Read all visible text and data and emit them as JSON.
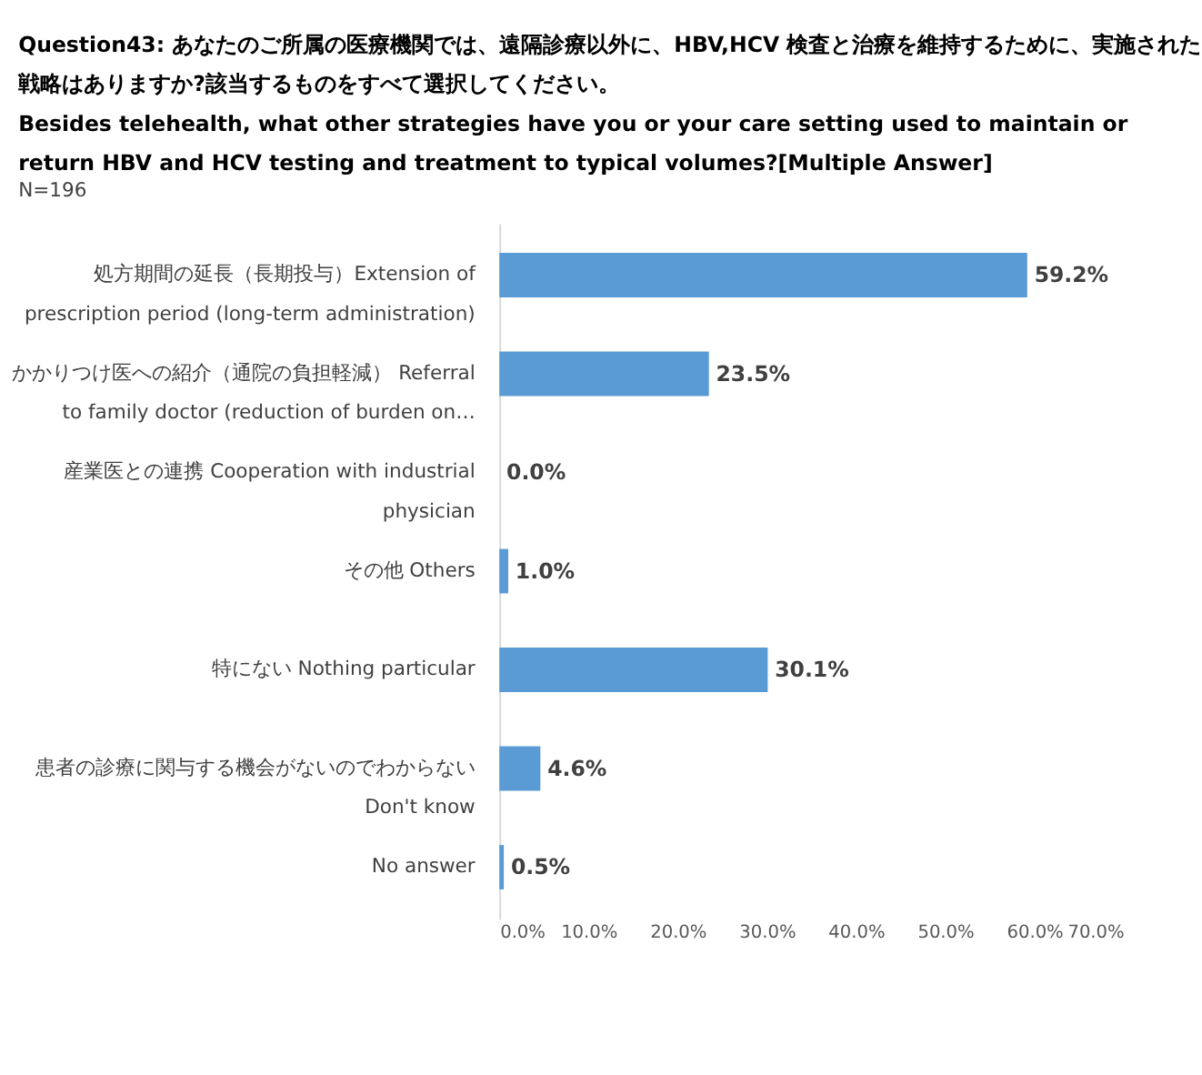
{
  "chart_data": {
    "type": "bar",
    "orientation": "horizontal",
    "title": "Question43: あなたのご所属の医療機関では、遠隔診療以外に、HBV,HCV 検査と治療を維持するために、実施された戦略はありますか?該当するものをすべて選択してください。\nBesides telehealth, what other strategies have you or your care setting  used to maintain or return HBV and HCV testing and treatment to typical volumes?[Multiple Answer]",
    "annotations": [
      "N=196"
    ],
    "categories": [
      "処方期間の延長（長期投与）Extension of prescription period (long-term administration)",
      "かかりつけ医への紹介（通院の負担軽減） Referral to family doctor (reduction of burden on…",
      "産業医との連携  Cooperation with industrial physician",
      "その他  Others",
      "特にない  Nothing particular",
      "患者の診療に関与する機会がないのでわからない  Don't know",
      "No answer"
    ],
    "values": [
      59.2,
      23.5,
      0.0,
      1.0,
      30.1,
      4.6,
      0.5
    ],
    "value_labels": [
      "59.2%",
      "23.5%",
      "0.0%",
      "1.0%",
      "30.1%",
      "4.6%",
      "0.5%"
    ],
    "color": "#5b9bd5",
    "xlim": [
      0,
      70
    ],
    "xticks": [
      {
        "value": 0,
        "label": "0.0%"
      },
      {
        "value": 10,
        "label": "10.0%"
      },
      {
        "value": 20,
        "label": "20.0%"
      },
      {
        "value": 30,
        "label": "30.0%"
      },
      {
        "value": 40,
        "label": "40.0%"
      },
      {
        "value": 50,
        "label": "50.0%"
      },
      {
        "value": 60,
        "label": "60.0%"
      },
      {
        "value": 70,
        "label": "70.0%"
      }
    ],
    "grid": false
  }
}
